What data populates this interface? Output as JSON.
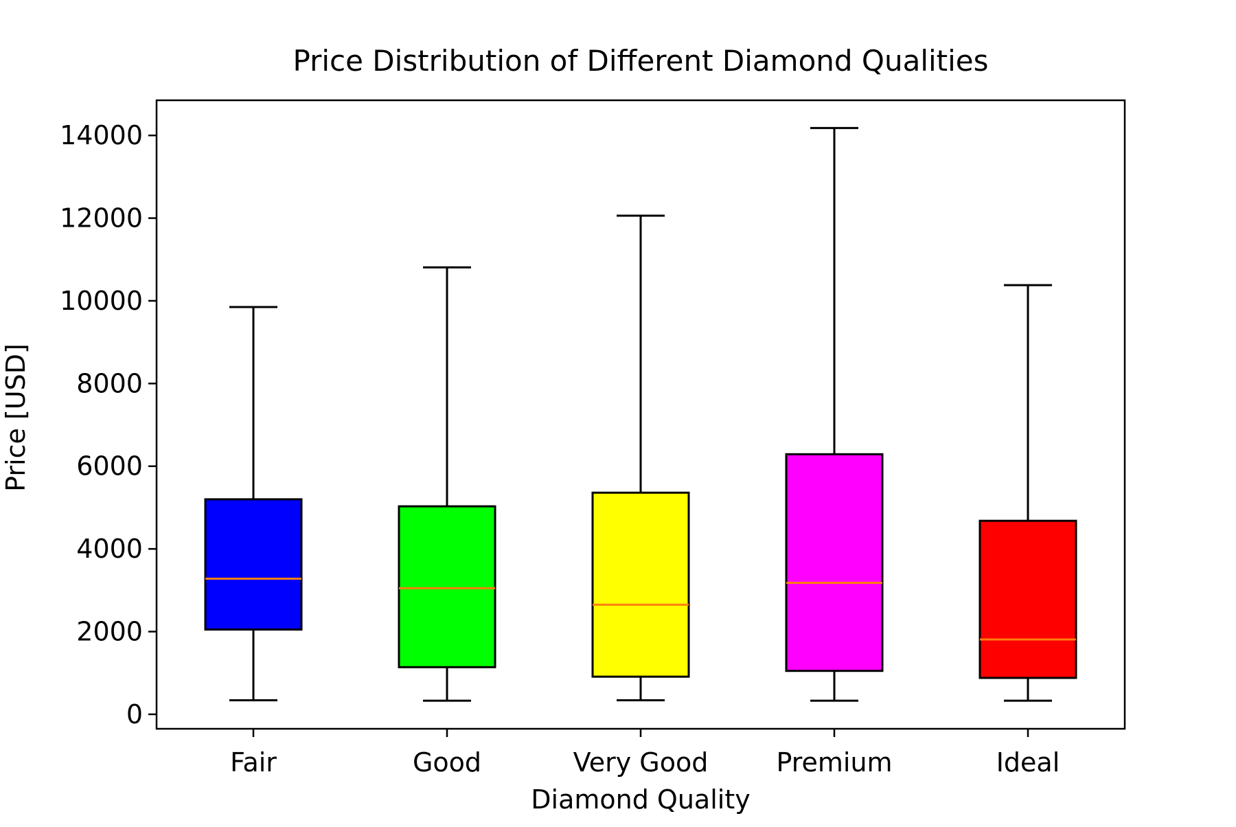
{
  "chart_data": {
    "type": "boxplot",
    "title": "Price Distribution of Different Diamond Qualities",
    "xlabel": "Diamond Quality",
    "ylabel": "Price [USD]",
    "ylim": [
      -350,
      14850
    ],
    "yticks": [
      0,
      2000,
      4000,
      6000,
      8000,
      10000,
      12000,
      14000
    ],
    "ytick_labels": [
      "0",
      "2000",
      "4000",
      "6000",
      "8000",
      "10000",
      "12000",
      "14000"
    ],
    "categories": [
      "Fair",
      "Good",
      "Very Good",
      "Premium",
      "Ideal"
    ],
    "boxes": [
      {
        "category": "Fair",
        "whisker_low": 340,
        "q1": 2050,
        "median": 3280,
        "q3": 5200,
        "whisker_high": 9850,
        "color": "#0000ff"
      },
      {
        "category": "Good",
        "whisker_low": 330,
        "q1": 1140,
        "median": 3050,
        "q3": 5030,
        "whisker_high": 10810,
        "color": "#00ff00"
      },
      {
        "category": "Very Good",
        "whisker_low": 340,
        "q1": 910,
        "median": 2650,
        "q3": 5360,
        "whisker_high": 12060,
        "color": "#ffff00"
      },
      {
        "category": "Premium",
        "whisker_low": 330,
        "q1": 1050,
        "median": 3180,
        "q3": 6290,
        "whisker_high": 14180,
        "color": "#ff00ff"
      },
      {
        "category": "Ideal",
        "whisker_low": 330,
        "q1": 880,
        "median": 1810,
        "q3": 4680,
        "whisker_high": 10380,
        "color": "#ff0000"
      }
    ],
    "median_color": "#ff7f0e",
    "grid": false,
    "legend": "none"
  }
}
